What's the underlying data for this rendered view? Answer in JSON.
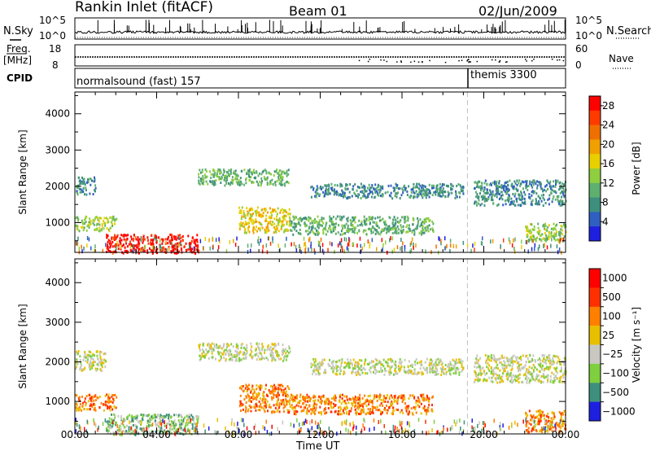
{
  "header": {
    "station": "Rankin Inlet (fitACF)",
    "beam": "Beam 01",
    "date": "02/Jun/2009"
  },
  "strip_labels": {
    "nsky": "N.Sky",
    "nsearch": "N.Search",
    "freq_line1": "Freq.",
    "freq_line2": "[MHz]",
    "cpid": "CPID",
    "nave": "Nave",
    "nsky_ticks": [
      "10^5",
      "10^0"
    ],
    "nsearch_ticks": [
      "10^5",
      "10^0"
    ],
    "freq_ticks": [
      "18",
      "8"
    ],
    "nave_ticks": [
      "60",
      "0"
    ]
  },
  "cpid_programs": [
    {
      "label": "normalsound (fast) 157",
      "start_hour": 0
    },
    {
      "label": "themis 3300",
      "start_hour": 19.2
    }
  ],
  "colors": {
    "power": [
      "#1f1fe0",
      "#2f5fc0",
      "#3f8f7f",
      "#5faf6f",
      "#8fcf3f",
      "#e8d000",
      "#f0a000",
      "#ef7000",
      "#ff3b00",
      "#ff0000"
    ],
    "velocity": [
      "#1f1fe0",
      "#3f8f7f",
      "#7fcf3f",
      "#c8c8c0",
      "#e8c000",
      "#ff8000",
      "#ff3000",
      "#ff0000"
    ],
    "ground_scatter": "#c8c8c0",
    "cpid_change_line": "#bfbfbf"
  },
  "chart_data": [
    {
      "type": "heatmap",
      "name": "power",
      "xlabel": "",
      "ylabel": "Slant Range [km]",
      "x_ticks": [
        "00:00",
        "04:00",
        "08:00",
        "12:00",
        "16:00",
        "20:00",
        "00:00"
      ],
      "y_ticks": [
        1000,
        2000,
        3000,
        4000
      ],
      "xlim": [
        0,
        24
      ],
      "ylim": [
        180,
        4600
      ],
      "colorbar": {
        "label": "Power [dB]",
        "ticks": [
          4,
          8,
          12,
          16,
          20,
          24,
          28
        ],
        "range": [
          0,
          30
        ]
      },
      "echo_regions": [
        {
          "t0": 0.0,
          "t1": 1.0,
          "r0": 1800,
          "r1": 2300,
          "level": 2
        },
        {
          "t0": 0.0,
          "t1": 2.0,
          "r0": 800,
          "r1": 1200,
          "level": 4
        },
        {
          "t0": 1.5,
          "t1": 6.0,
          "r0": 180,
          "r1": 700,
          "level": 9
        },
        {
          "t0": 6.0,
          "t1": 10.5,
          "r0": 2050,
          "r1": 2500,
          "level": 3
        },
        {
          "t0": 8.0,
          "t1": 10.5,
          "r0": 750,
          "r1": 1450,
          "level": 5
        },
        {
          "t0": 10.5,
          "t1": 17.5,
          "r0": 700,
          "r1": 1200,
          "level": 3
        },
        {
          "t0": 11.5,
          "t1": 19.0,
          "r0": 1700,
          "r1": 2100,
          "level": 2
        },
        {
          "t0": 19.5,
          "t1": 24.0,
          "r0": 1500,
          "r1": 2200,
          "level": 2
        },
        {
          "t0": 22.0,
          "t1": 24.0,
          "r0": 500,
          "r1": 1000,
          "level": 4
        }
      ]
    },
    {
      "type": "heatmap",
      "name": "velocity",
      "xlabel": "Time UT",
      "ylabel": "Slant Range [km]",
      "x_ticks": [
        "00:00",
        "04:00",
        "08:00",
        "12:00",
        "16:00",
        "20:00",
        "00:00"
      ],
      "y_ticks": [
        1000,
        2000,
        3000,
        4000
      ],
      "xlim": [
        0,
        24
      ],
      "ylim": [
        180,
        4600
      ],
      "colorbar": {
        "label": "Velocity [m s⁻¹]",
        "ticks": [
          "1000",
          "500",
          "100",
          "25",
          "−25",
          "−100",
          "−500",
          "−1000"
        ]
      },
      "echo_regions": [
        {
          "t0": 0.0,
          "t1": 1.5,
          "r0": 1800,
          "r1": 2300,
          "level": 3
        },
        {
          "t0": 0.0,
          "t1": 2.0,
          "r0": 800,
          "r1": 1200,
          "level": 5
        },
        {
          "t0": 1.5,
          "t1": 6.0,
          "r0": 180,
          "r1": 700,
          "level": 2
        },
        {
          "t0": 6.0,
          "t1": 10.5,
          "r0": 2050,
          "r1": 2500,
          "level": 3
        },
        {
          "t0": 8.0,
          "t1": 10.5,
          "r0": 750,
          "r1": 1450,
          "level": 5
        },
        {
          "t0": 10.5,
          "t1": 17.5,
          "r0": 700,
          "r1": 1200,
          "level": 5
        },
        {
          "t0": 11.5,
          "t1": 19.0,
          "r0": 1700,
          "r1": 2100,
          "level": 3
        },
        {
          "t0": 19.5,
          "t1": 24.0,
          "r0": 1500,
          "r1": 2200,
          "level": 3
        },
        {
          "t0": 22.0,
          "t1": 24.0,
          "r0": 250,
          "r1": 800,
          "level": 5
        }
      ]
    }
  ]
}
